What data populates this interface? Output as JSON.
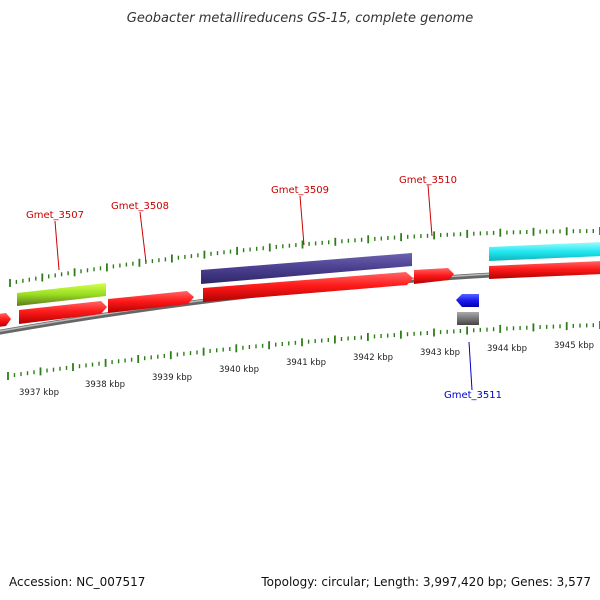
{
  "title": "Geobacter metallireducens GS-15, complete genome",
  "footer": {
    "accession": "Accession: NC_007517",
    "summary": "Topology: circular; Length: 3,997,420 bp; Genes: 3,577"
  },
  "colors": {
    "forward_label": "#cc0000",
    "reverse_label": "#0000cc",
    "cds": "#ff1a1a",
    "backbone": "#888888",
    "tick": "#2e7d1a"
  },
  "genes": [
    {
      "name": "Gmet_3507",
      "strand": "forward"
    },
    {
      "name": "Gmet_3508",
      "strand": "forward"
    },
    {
      "name": "Gmet_3509",
      "strand": "forward"
    },
    {
      "name": "Gmet_3510",
      "strand": "forward"
    },
    {
      "name": "Gmet_3511",
      "strand": "reverse"
    }
  ],
  "scale": [
    {
      "label": "3937 kbp"
    },
    {
      "label": "3938 kbp"
    },
    {
      "label": "3939 kbp"
    },
    {
      "label": "3940 kbp"
    },
    {
      "label": "3941 kbp"
    },
    {
      "label": "3942 kbp"
    },
    {
      "label": "3943 kbp"
    },
    {
      "label": "3944 kbp"
    },
    {
      "label": "3945 kbp"
    }
  ]
}
